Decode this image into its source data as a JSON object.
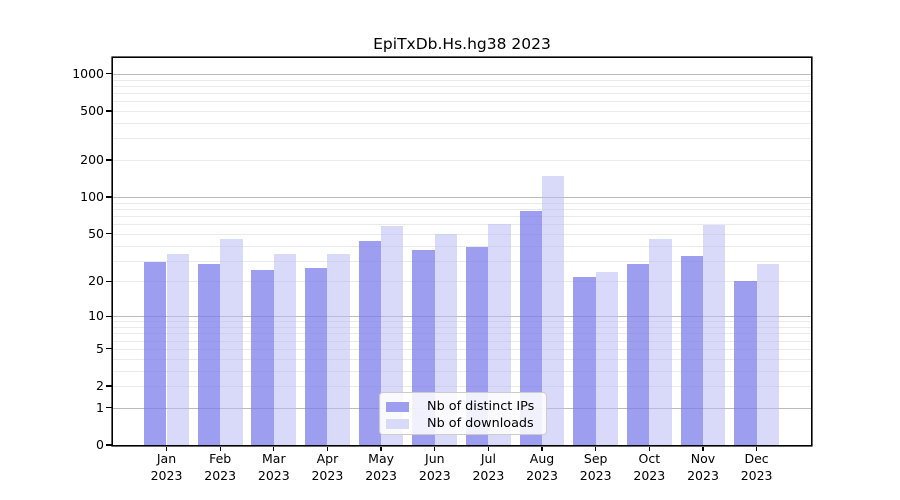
{
  "figure": {
    "title": "EpiTxDb.Hs.hg38 2023"
  },
  "chart_data": {
    "type": "bar",
    "title": "EpiTxDb.Hs.hg38 2023",
    "categories": [
      "Jan 2023",
      "Feb 2023",
      "Mar 2023",
      "Apr 2023",
      "May 2023",
      "Jun 2023",
      "Jul 2023",
      "Aug 2023",
      "Sep 2023",
      "Oct 2023",
      "Nov 2023",
      "Dec 2023"
    ],
    "series": [
      {
        "name": "Nb of distinct IPs",
        "values": [
          29,
          28,
          25,
          26,
          44,
          37,
          39,
          77,
          22,
          28,
          33,
          20
        ],
        "apparent_color": "#9e9ef0",
        "fill": "rgba(124,124,235,0.74)"
      },
      {
        "name": "Nb of downloads",
        "values": [
          34,
          45,
          34,
          34,
          58,
          50,
          60,
          148,
          24,
          45,
          59,
          28
        ],
        "apparent_color": "#d9d9f9",
        "fill": "rgba(183,183,243,0.53)"
      }
    ],
    "yscale": "log1p",
    "yticks": [
      0,
      1,
      2,
      5,
      10,
      20,
      50,
      100,
      200,
      500,
      1000
    ],
    "ylim": [
      0,
      1340
    ],
    "xlabel": "",
    "ylabel": "",
    "grid": true,
    "legend": {
      "position": "inside-bottom-center",
      "labels": [
        "Nb of distinct IPs",
        "Nb of downloads"
      ]
    },
    "colors": {
      "major_grid": "#bbbbbb",
      "minor_grid": "#eaeaea",
      "spine": "#000000",
      "background": "#ffffff"
    }
  }
}
